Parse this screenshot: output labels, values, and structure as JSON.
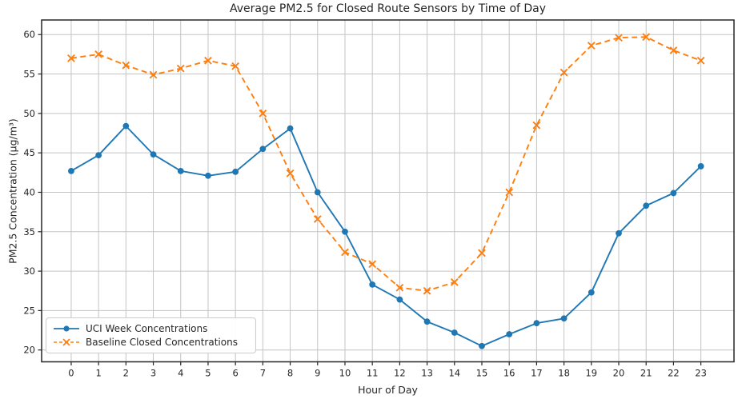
{
  "title": "Average PM2.5 for Closed Route Sensors by Time of Day",
  "chart_data": {
    "type": "line",
    "title": "Average PM2.5 for Closed Route Sensors by Time of Day",
    "xlabel": "Hour of Day",
    "ylabel": "PM2.5 Concentration (µg/m³)",
    "x": [
      0,
      1,
      2,
      3,
      4,
      5,
      6,
      7,
      8,
      9,
      10,
      11,
      12,
      13,
      14,
      15,
      16,
      17,
      18,
      19,
      20,
      21,
      22,
      23
    ],
    "series": [
      {
        "name": "UCI Week Concentrations",
        "color": "#1f77b4",
        "line_style": "solid",
        "marker": "circle",
        "values": [
          42.7,
          44.7,
          48.4,
          44.8,
          42.7,
          42.1,
          42.6,
          45.5,
          48.1,
          40.0,
          35.0,
          28.3,
          26.4,
          23.6,
          22.2,
          20.5,
          22.0,
          23.4,
          24.0,
          27.3,
          34.8,
          38.3,
          39.9,
          43.3
        ]
      },
      {
        "name": "Baseline Closed Concentrations",
        "color": "#ff7f0e",
        "line_style": "dashed",
        "marker": "x",
        "values": [
          57.0,
          57.5,
          56.1,
          54.9,
          55.7,
          56.7,
          56.0,
          50.0,
          42.4,
          36.6,
          32.4,
          30.9,
          27.9,
          27.5,
          28.6,
          32.3,
          40.0,
          48.5,
          55.2,
          58.6,
          59.6,
          59.7,
          58.0,
          56.7
        ]
      }
    ],
    "xticks": [
      0,
      1,
      2,
      3,
      4,
      5,
      6,
      7,
      8,
      9,
      10,
      11,
      12,
      13,
      14,
      15,
      16,
      17,
      18,
      19,
      20,
      21,
      22,
      23
    ],
    "yticks": [
      20,
      25,
      30,
      35,
      40,
      45,
      50,
      55,
      60
    ],
    "xlim": [
      -1.08,
      24.21
    ],
    "ylim": [
      18.5,
      61.85
    ],
    "grid": true,
    "legend_position": "lower-left",
    "grid_color": "#c4c4c4",
    "spine_color": "#262626",
    "tick_label_color": "#262626"
  }
}
